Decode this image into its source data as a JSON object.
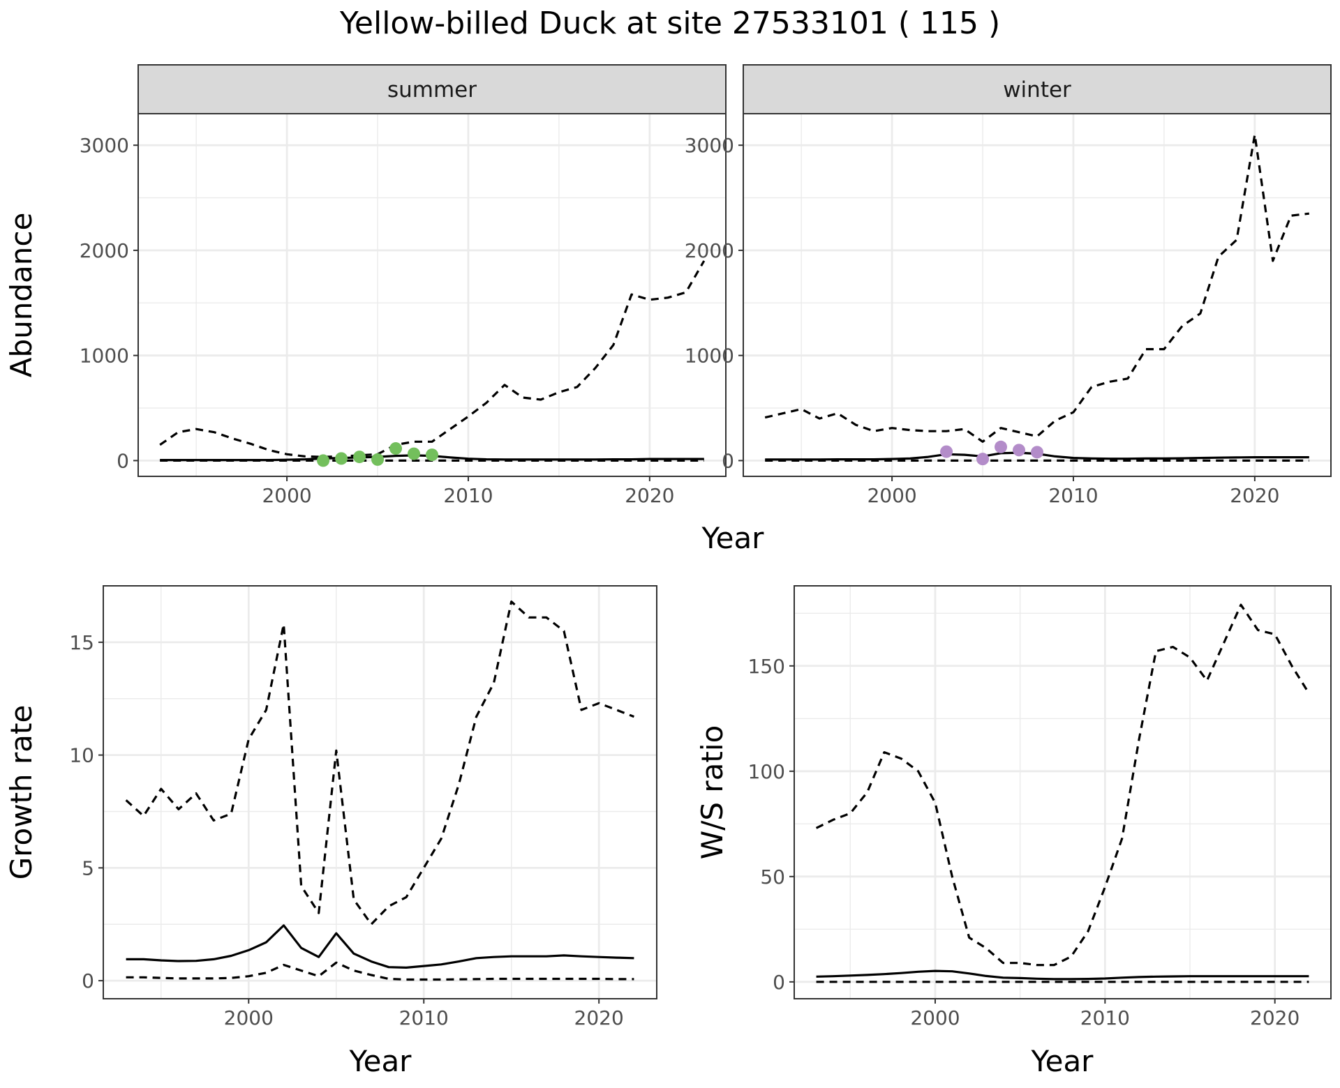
{
  "title": "Yellow-billed Duck at site 27533101 ( 115 )",
  "colors": {
    "summer_points": "#73bf5c",
    "winter_points": "#b38cc9",
    "strip_fill": "#d9d9d9",
    "line": "#000000"
  },
  "chart_data": [
    {
      "type": "line",
      "panel": "summer",
      "strip_label": "summer",
      "xlabel": "Year",
      "ylabel": "Abundance",
      "xlim": [
        1991.8,
        2024.2
      ],
      "ylim": [
        -150,
        3300
      ],
      "x_ticks": [
        2000,
        2010,
        2020
      ],
      "y_ticks": [
        0,
        1000,
        2000,
        3000
      ],
      "series": [
        {
          "style": "solid",
          "x": [
            1993,
            1994,
            1995,
            1996,
            1997,
            1998,
            1999,
            2000,
            2001,
            2002,
            2003,
            2004,
            2005,
            2006,
            2007,
            2008,
            2009,
            2010,
            2011,
            2012,
            2013,
            2014,
            2015,
            2016,
            2017,
            2018,
            2019,
            2020,
            2021,
            2022,
            2023
          ],
          "y": [
            5,
            5,
            5,
            5,
            5,
            5,
            5,
            8,
            12,
            20,
            25,
            30,
            35,
            45,
            50,
            45,
            30,
            18,
            12,
            10,
            10,
            10,
            10,
            10,
            10,
            12,
            12,
            15,
            15,
            15,
            15
          ]
        },
        {
          "style": "dashed",
          "x": [
            1993,
            1994,
            1995,
            1996,
            1997,
            1998,
            1999,
            2000,
            2001,
            2002,
            2003,
            2004,
            2005,
            2006,
            2007,
            2008,
            2009,
            2010,
            2011,
            2012,
            2013,
            2014,
            2015,
            2016,
            2017,
            2018,
            2019,
            2020,
            2021,
            2022,
            2023
          ],
          "y": [
            150,
            270,
            300,
            270,
            210,
            160,
            100,
            60,
            40,
            35,
            40,
            50,
            60,
            150,
            180,
            180,
            300,
            420,
            550,
            720,
            600,
            580,
            650,
            700,
            880,
            1100,
            1580,
            1530,
            1550,
            1600,
            1900
          ]
        },
        {
          "style": "dashed",
          "x": [
            1993,
            2000,
            2005,
            2010,
            2015,
            2020,
            2023
          ],
          "y": [
            0,
            0,
            0,
            0,
            0,
            0,
            0
          ]
        }
      ],
      "points": {
        "x": [
          2002,
          2003,
          2004,
          2005,
          2006,
          2007,
          2008
        ],
        "y": [
          0,
          20,
          35,
          10,
          115,
          65,
          55
        ]
      }
    },
    {
      "type": "line",
      "panel": "winter",
      "strip_label": "winter",
      "xlabel": "Year",
      "ylabel": "",
      "xlim": [
        1991.8,
        2024.2
      ],
      "ylim": [
        -150,
        3300
      ],
      "x_ticks": [
        2000,
        2010,
        2020
      ],
      "y_ticks": [
        0,
        1000,
        2000,
        3000
      ],
      "series": [
        {
          "style": "solid",
          "x": [
            1993,
            1994,
            1995,
            1996,
            1997,
            1998,
            1999,
            2000,
            2001,
            2002,
            2003,
            2004,
            2005,
            2006,
            2007,
            2008,
            2009,
            2010,
            2011,
            2012,
            2013,
            2014,
            2015,
            2016,
            2017,
            2018,
            2019,
            2020,
            2021,
            2022,
            2023
          ],
          "y": [
            10,
            10,
            10,
            10,
            12,
            12,
            12,
            15,
            20,
            35,
            60,
            55,
            40,
            70,
            75,
            65,
            40,
            25,
            20,
            18,
            18,
            20,
            20,
            22,
            25,
            28,
            30,
            32,
            32,
            32,
            32
          ]
        },
        {
          "style": "dashed",
          "x": [
            1993,
            1994,
            1995,
            1996,
            1997,
            1998,
            1999,
            2000,
            2001,
            2002,
            2003,
            2004,
            2005,
            2006,
            2007,
            2008,
            2009,
            2010,
            2011,
            2012,
            2013,
            2014,
            2015,
            2016,
            2017,
            2018,
            2019,
            2020,
            2021,
            2022,
            2023
          ],
          "y": [
            410,
            450,
            490,
            400,
            450,
            340,
            280,
            310,
            290,
            280,
            280,
            300,
            180,
            310,
            270,
            230,
            380,
            460,
            700,
            750,
            780,
            1060,
            1060,
            1280,
            1400,
            1940,
            2100,
            3100,
            1900,
            2330,
            2350
          ]
        },
        {
          "style": "dashed",
          "x": [
            1993,
            2000,
            2005,
            2010,
            2015,
            2020,
            2023
          ],
          "y": [
            0,
            0,
            0,
            0,
            0,
            0,
            0
          ]
        }
      ],
      "points": {
        "x": [
          2003,
          2005,
          2006,
          2007,
          2008
        ],
        "y": [
          85,
          15,
          130,
          100,
          80
        ]
      }
    },
    {
      "type": "line",
      "panel": "growth",
      "xlabel": "Year",
      "ylabel": "Growth rate",
      "xlim": [
        1991.7,
        2023.3
      ],
      "ylim": [
        -0.8,
        17.5
      ],
      "x_ticks": [
        2000,
        2010,
        2020
      ],
      "y_ticks": [
        0,
        5,
        10,
        15
      ],
      "series": [
        {
          "style": "solid",
          "x": [
            1993,
            1994,
            1995,
            1996,
            1997,
            1998,
            1999,
            2000,
            2001,
            2002,
            2003,
            2004,
            2005,
            2006,
            2007,
            2008,
            2009,
            2010,
            2011,
            2012,
            2013,
            2014,
            2015,
            2016,
            2017,
            2018,
            2019,
            2020,
            2021,
            2022
          ],
          "y": [
            0.95,
            0.95,
            0.9,
            0.87,
            0.88,
            0.95,
            1.1,
            1.35,
            1.7,
            2.45,
            1.45,
            1.05,
            2.1,
            1.2,
            0.85,
            0.6,
            0.58,
            0.65,
            0.72,
            0.85,
            1.0,
            1.05,
            1.08,
            1.08,
            1.08,
            1.12,
            1.08,
            1.05,
            1.02,
            1.0
          ]
        },
        {
          "style": "dashed",
          "x": [
            1993,
            1994,
            1995,
            1996,
            1997,
            1998,
            1999,
            2000,
            2001,
            2002,
            2003,
            2004,
            2005,
            2006,
            2007,
            2008,
            2009,
            2010,
            2011,
            2012,
            2013,
            2014,
            2015,
            2016,
            2017,
            2018,
            2019,
            2020,
            2021,
            2022
          ],
          "y": [
            8.0,
            7.3,
            8.5,
            7.6,
            8.3,
            7.1,
            7.4,
            10.7,
            12.0,
            15.8,
            4.2,
            3.0,
            10.2,
            3.6,
            2.5,
            3.3,
            3.7,
            5.0,
            6.3,
            8.7,
            11.7,
            13.2,
            16.8,
            16.1,
            16.1,
            15.5,
            12.0,
            12.3,
            12.0,
            11.7
          ]
        },
        {
          "style": "dashed",
          "x": [
            1993,
            1994,
            1995,
            1996,
            1997,
            1998,
            1999,
            2000,
            2001,
            2002,
            2003,
            2004,
            2005,
            2006,
            2007,
            2008,
            2009,
            2010,
            2011,
            2012,
            2013,
            2014,
            2015,
            2016,
            2017,
            2018,
            2019,
            2020,
            2021,
            2022
          ],
          "y": [
            0.15,
            0.15,
            0.12,
            0.1,
            0.1,
            0.1,
            0.12,
            0.2,
            0.35,
            0.7,
            0.45,
            0.2,
            0.8,
            0.45,
            0.25,
            0.08,
            0.05,
            0.05,
            0.05,
            0.06,
            0.07,
            0.08,
            0.08,
            0.08,
            0.08,
            0.08,
            0.08,
            0.08,
            0.07,
            0.07
          ]
        }
      ]
    },
    {
      "type": "line",
      "panel": "ws_ratio",
      "xlabel": "Year",
      "ylabel": "W/S ratio",
      "xlim": [
        1991.7,
        2023.3
      ],
      "ylim": [
        -8,
        188
      ],
      "x_ticks": [
        2000,
        2010,
        2020
      ],
      "y_ticks": [
        0,
        50,
        100,
        150
      ],
      "series": [
        {
          "style": "solid",
          "x": [
            1993,
            1994,
            1995,
            1996,
            1997,
            1998,
            1999,
            2000,
            2001,
            2002,
            2003,
            2004,
            2005,
            2006,
            2007,
            2008,
            2009,
            2010,
            2011,
            2012,
            2013,
            2014,
            2015,
            2016,
            2017,
            2018,
            2019,
            2020,
            2021,
            2022
          ],
          "y": [
            2.5,
            2.7,
            3.0,
            3.3,
            3.7,
            4.2,
            4.8,
            5.2,
            5.0,
            4.0,
            2.8,
            2.0,
            1.8,
            1.5,
            1.3,
            1.3,
            1.4,
            1.6,
            2.0,
            2.3,
            2.5,
            2.6,
            2.7,
            2.7,
            2.7,
            2.7,
            2.7,
            2.7,
            2.7,
            2.7
          ]
        },
        {
          "style": "dashed",
          "x": [
            1993,
            1994,
            1995,
            1996,
            1997,
            1998,
            1999,
            2000,
            2001,
            2002,
            2003,
            2004,
            2005,
            2006,
            2007,
            2008,
            2009,
            2010,
            2011,
            2012,
            2013,
            2014,
            2015,
            2016,
            2017,
            2018,
            2019,
            2020,
            2021,
            2022
          ],
          "y": [
            73,
            77,
            80,
            90,
            109,
            106,
            100,
            85,
            50,
            21,
            16,
            9,
            9,
            8,
            8,
            12,
            24,
            45,
            68,
            115,
            157,
            159,
            154,
            143,
            161,
            179,
            167,
            165,
            150,
            137
          ]
        },
        {
          "style": "dashed",
          "x": [
            1993,
            2000,
            2005,
            2010,
            2015,
            2020,
            2022
          ],
          "y": [
            0,
            0,
            0,
            0,
            0,
            0,
            0
          ]
        }
      ]
    }
  ]
}
